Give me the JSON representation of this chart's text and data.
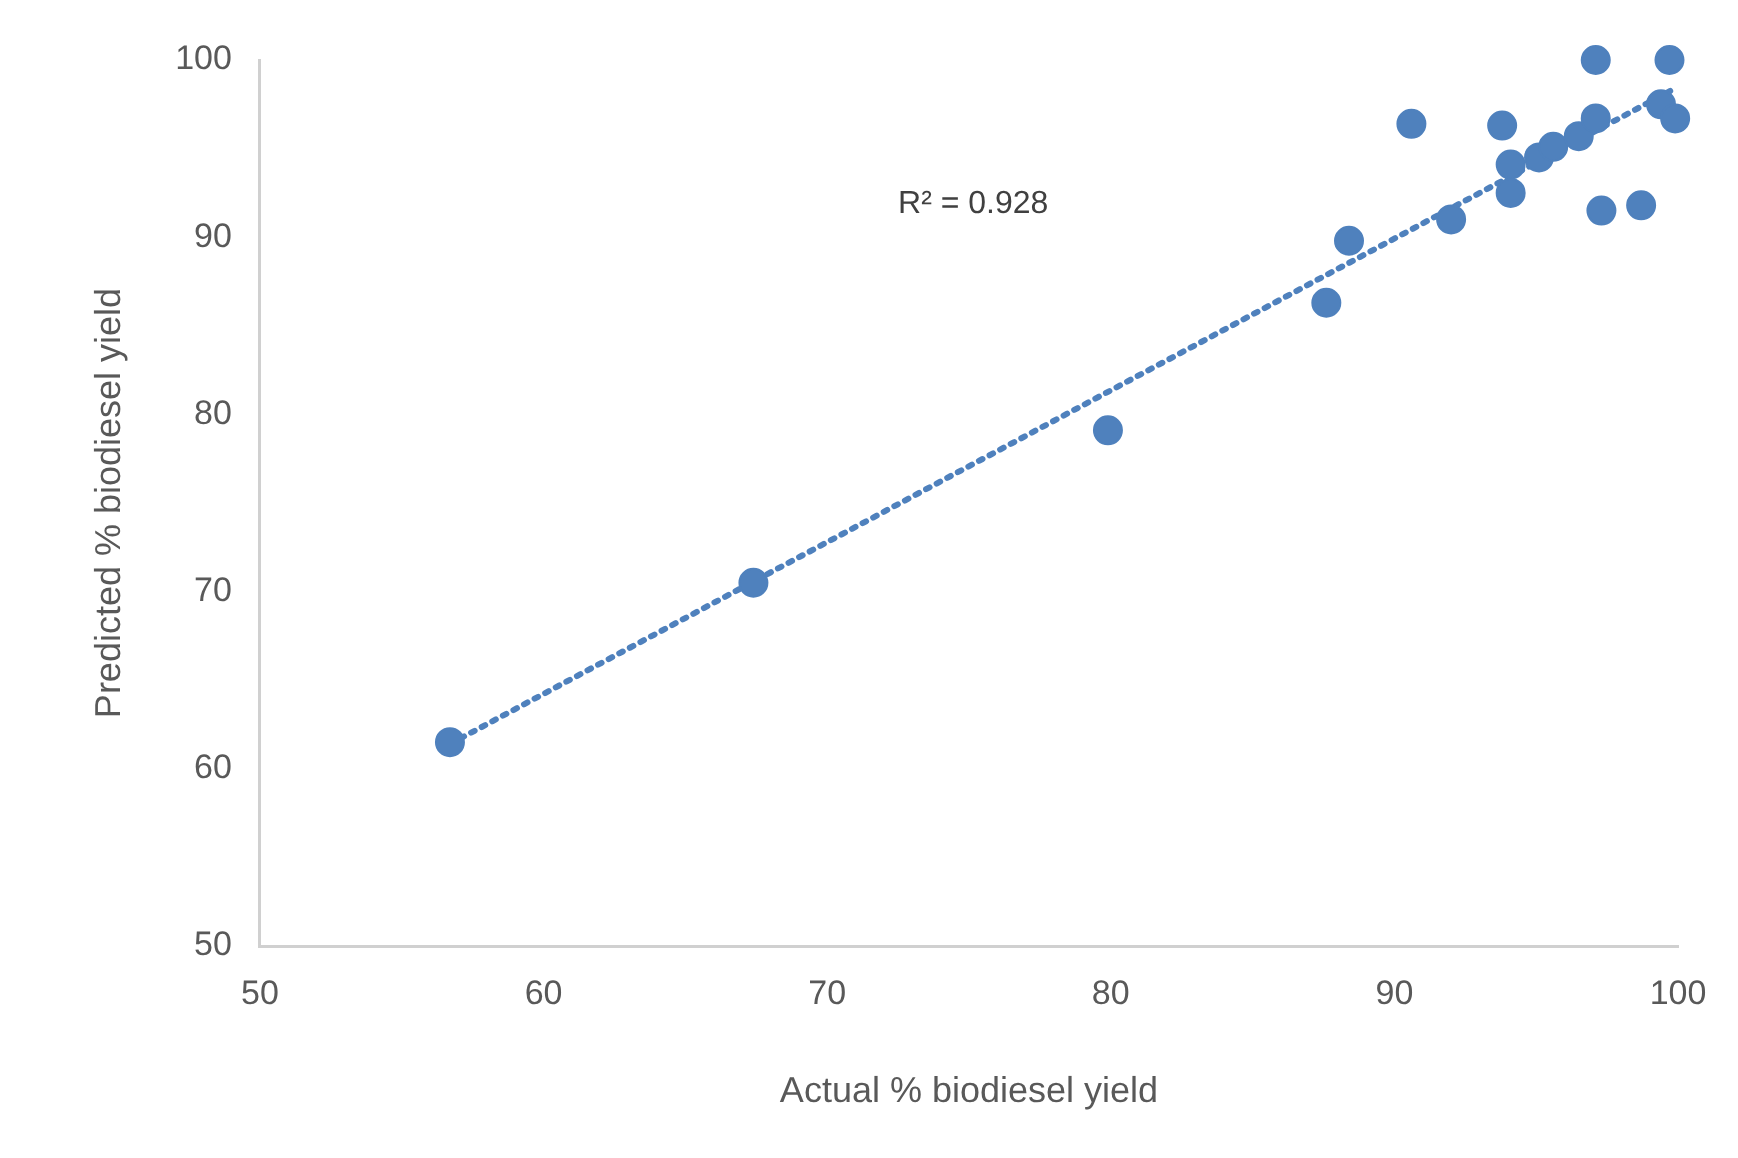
{
  "chart_data": {
    "type": "scatter",
    "xlabel": "Actual % biodiesel yield",
    "ylabel": "Predicted % biodiesel yield",
    "xlim": [
      50,
      100
    ],
    "xticks": [
      50,
      60,
      70,
      80,
      90,
      100
    ],
    "ylim": [
      50,
      100
    ],
    "yticks": [
      50,
      60,
      70,
      80,
      90,
      100
    ],
    "grid": false,
    "legend": false,
    "marker": "circle",
    "annotations": [
      "R² = 0.928"
    ],
    "series": [
      {
        "color": "#4f81bd",
        "x": [
          56.7,
          67.4,
          79.9,
          87.6,
          88.4,
          90.6,
          92.0,
          93.8,
          94.1,
          94.1,
          95.1,
          95.6,
          96.5,
          97.1,
          97.1,
          97.3,
          98.7,
          99.4,
          99.7,
          99.9
        ],
        "values": [
          61.5,
          70.5,
          79.1,
          86.3,
          89.8,
          96.4,
          91.0,
          96.3,
          94.1,
          92.5,
          94.5,
          95.1,
          95.7,
          96.7,
          100.0,
          91.5,
          91.8,
          97.5,
          100.0,
          96.7
        ]
      },
      {
        "type": "line",
        "color": "#4f81bd",
        "line_style": "dotted",
        "marker": "none",
        "x": [
          56.7,
          99.9
        ],
        "values": [
          61.4,
          98.4
        ]
      }
    ]
  }
}
